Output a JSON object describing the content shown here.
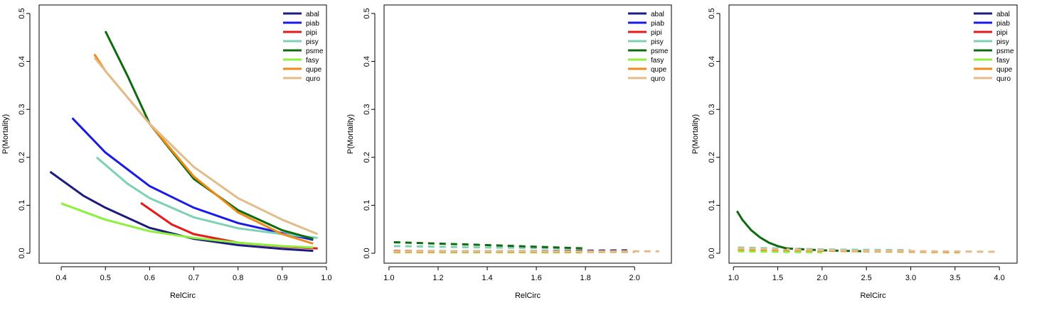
{
  "legend_entries": [
    {
      "name": "abal",
      "color": "#1c1c80"
    },
    {
      "name": "piab",
      "color": "#1a1ae6"
    },
    {
      "name": "pipi",
      "color": "#e61a1a"
    },
    {
      "name": "pisy",
      "color": "#7fd1b5"
    },
    {
      "name": "psme",
      "color": "#0f6b0f"
    },
    {
      "name": "fasy",
      "color": "#8cf03c"
    },
    {
      "name": "qupe",
      "color": "#f08a14"
    },
    {
      "name": "quro",
      "color": "#e2bc8a"
    }
  ],
  "chart_data": [
    {
      "type": "line",
      "xlabel": "RelCirc",
      "ylabel": "P(Mortality)",
      "xlim": [
        0.35,
        1.0
      ],
      "ylim": [
        0,
        0.5
      ],
      "xticks": [
        0.4,
        0.5,
        0.6,
        0.7,
        0.8,
        0.9,
        1.0
      ],
      "xtick_labels": [
        "0.4",
        "0.5",
        "0.6",
        "0.7",
        "0.8",
        "0.9",
        "1.0"
      ],
      "yticks": [
        0,
        0.1,
        0.2,
        0.3,
        0.4,
        0.5
      ],
      "ytick_labels": [
        "0.0",
        "0.1",
        "0.2",
        "0.3",
        "0.4",
        "0.5"
      ],
      "legend_position": "top-right",
      "line_style": "solid",
      "series": [
        {
          "name": "abal",
          "x": [
            0.375,
            0.45,
            0.5,
            0.6,
            0.7,
            0.8,
            0.9,
            0.97
          ],
          "y": [
            0.17,
            0.12,
            0.095,
            0.053,
            0.03,
            0.017,
            0.009,
            0.005
          ]
        },
        {
          "name": "piab",
          "x": [
            0.425,
            0.5,
            0.6,
            0.7,
            0.8,
            0.9,
            0.97
          ],
          "y": [
            0.282,
            0.21,
            0.14,
            0.095,
            0.063,
            0.042,
            0.028
          ]
        },
        {
          "name": "pipi",
          "x": [
            0.58,
            0.65,
            0.7,
            0.8,
            0.9,
            0.98
          ],
          "y": [
            0.105,
            0.06,
            0.04,
            0.022,
            0.014,
            0.01
          ]
        },
        {
          "name": "pisy",
          "x": [
            0.48,
            0.55,
            0.6,
            0.7,
            0.8,
            0.9,
            0.98
          ],
          "y": [
            0.2,
            0.145,
            0.115,
            0.075,
            0.052,
            0.04,
            0.032
          ]
        },
        {
          "name": "psme",
          "x": [
            0.5,
            0.55,
            0.6,
            0.7,
            0.8,
            0.9,
            0.97
          ],
          "y": [
            0.463,
            0.37,
            0.27,
            0.155,
            0.09,
            0.048,
            0.03
          ]
        },
        {
          "name": "fasy",
          "x": [
            0.4,
            0.5,
            0.6,
            0.7,
            0.8,
            0.9,
            0.97
          ],
          "y": [
            0.104,
            0.07,
            0.046,
            0.032,
            0.022,
            0.015,
            0.012
          ]
        },
        {
          "name": "qupe",
          "x": [
            0.475,
            0.5,
            0.6,
            0.7,
            0.8,
            0.9,
            0.97
          ],
          "y": [
            0.415,
            0.38,
            0.27,
            0.16,
            0.085,
            0.04,
            0.02
          ]
        },
        {
          "name": "quro",
          "x": [
            0.475,
            0.5,
            0.6,
            0.7,
            0.8,
            0.9,
            0.98
          ],
          "y": [
            0.408,
            0.38,
            0.27,
            0.18,
            0.115,
            0.07,
            0.04
          ]
        }
      ]
    },
    {
      "type": "line",
      "xlabel": "RelCirc",
      "ylabel": "P(Mortality)",
      "xlim": [
        0.98,
        2.15
      ],
      "ylim": [
        0,
        0.5
      ],
      "xticks": [
        1.0,
        1.2,
        1.4,
        1.6,
        1.8,
        2.0
      ],
      "xtick_labels": [
        "1.0",
        "1.2",
        "1.4",
        "1.6",
        "1.8",
        "2.0"
      ],
      "yticks": [
        0,
        0.1,
        0.2,
        0.3,
        0.4,
        0.5
      ],
      "ytick_labels": [
        "0.0",
        "0.1",
        "0.2",
        "0.3",
        "0.4",
        "0.5"
      ],
      "legend_position": "top-right",
      "line_style": "dashed",
      "series": [
        {
          "name": "abal",
          "x": [
            1.02,
            1.5,
            1.97
          ],
          "y": [
            0.004,
            0.004,
            0.006
          ]
        },
        {
          "name": "piab",
          "x": [
            1.02,
            1.4,
            1.76
          ],
          "y": [
            0.003,
            0.003,
            0.003
          ]
        },
        {
          "name": "pipi",
          "x": [
            1.02,
            1.4,
            1.78
          ],
          "y": [
            0.005,
            0.003,
            0.002
          ]
        },
        {
          "name": "pisy",
          "x": [
            1.02,
            1.4,
            1.8
          ],
          "y": [
            0.015,
            0.012,
            0.01
          ]
        },
        {
          "name": "psme",
          "x": [
            1.02,
            1.4,
            1.8
          ],
          "y": [
            0.023,
            0.017,
            0.01
          ]
        },
        {
          "name": "fasy",
          "x": [
            1.02,
            1.4,
            1.78
          ],
          "y": [
            0.002,
            0.002,
            0.002
          ]
        },
        {
          "name": "qupe",
          "x": [
            1.02,
            1.5,
            2.0
          ],
          "y": [
            0.003,
            0.003,
            0.003
          ]
        },
        {
          "name": "quro",
          "x": [
            1.02,
            1.5,
            2.1
          ],
          "y": [
            0.004,
            0.004,
            0.004
          ]
        }
      ]
    },
    {
      "type": "line",
      "xlabel": "RelCirc",
      "ylabel": "P(Mortality)",
      "xlim": [
        0.95,
        4.2
      ],
      "ylim": [
        0,
        0.5
      ],
      "xticks": [
        1.0,
        1.5,
        2.0,
        2.5,
        3.0,
        3.5,
        4.0
      ],
      "xtick_labels": [
        "1.0",
        "1.5",
        "2.0",
        "2.5",
        "3.0",
        "3.5",
        "4.0"
      ],
      "yticks": [
        0,
        0.1,
        0.2,
        0.3,
        0.4,
        0.5
      ],
      "ytick_labels": [
        "0.0",
        "0.1",
        "0.2",
        "0.3",
        "0.4",
        "0.5"
      ],
      "legend_position": "top-right",
      "line_style": "dashed",
      "solid_segment": {
        "name": "psme",
        "x": [
          1.04,
          1.1,
          1.2,
          1.3,
          1.4,
          1.5,
          1.6
        ],
        "y": [
          0.088,
          0.07,
          0.048,
          0.033,
          0.022,
          0.015,
          0.01
        ]
      },
      "series": [
        {
          "name": "abal",
          "x": [
            1.05,
            2.0,
            2.95
          ],
          "y": [
            0.008,
            0.006,
            0.006
          ]
        },
        {
          "name": "piab",
          "x": [
            1.05,
            1.5,
            2.0
          ],
          "y": [
            0.01,
            0.006,
            0.004
          ]
        },
        {
          "name": "pipi",
          "x": [
            1.05,
            1.5,
            2.0
          ],
          "y": [
            0.01,
            0.005,
            0.003
          ]
        },
        {
          "name": "pisy",
          "x": [
            1.05,
            2.0,
            3.0
          ],
          "y": [
            0.012,
            0.008,
            0.006
          ]
        },
        {
          "name": "psme",
          "x": [
            1.6,
            2.0,
            2.5
          ],
          "y": [
            0.01,
            0.006,
            0.004
          ]
        },
        {
          "name": "fasy",
          "x": [
            1.05,
            1.5,
            2.0
          ],
          "y": [
            0.004,
            0.003,
            0.002
          ]
        },
        {
          "name": "qupe",
          "x": [
            1.05,
            2.5,
            3.55
          ],
          "y": [
            0.008,
            0.004,
            0.002
          ]
        },
        {
          "name": "quro",
          "x": [
            1.05,
            2.5,
            4.0
          ],
          "y": [
            0.01,
            0.005,
            0.003
          ]
        }
      ]
    }
  ]
}
